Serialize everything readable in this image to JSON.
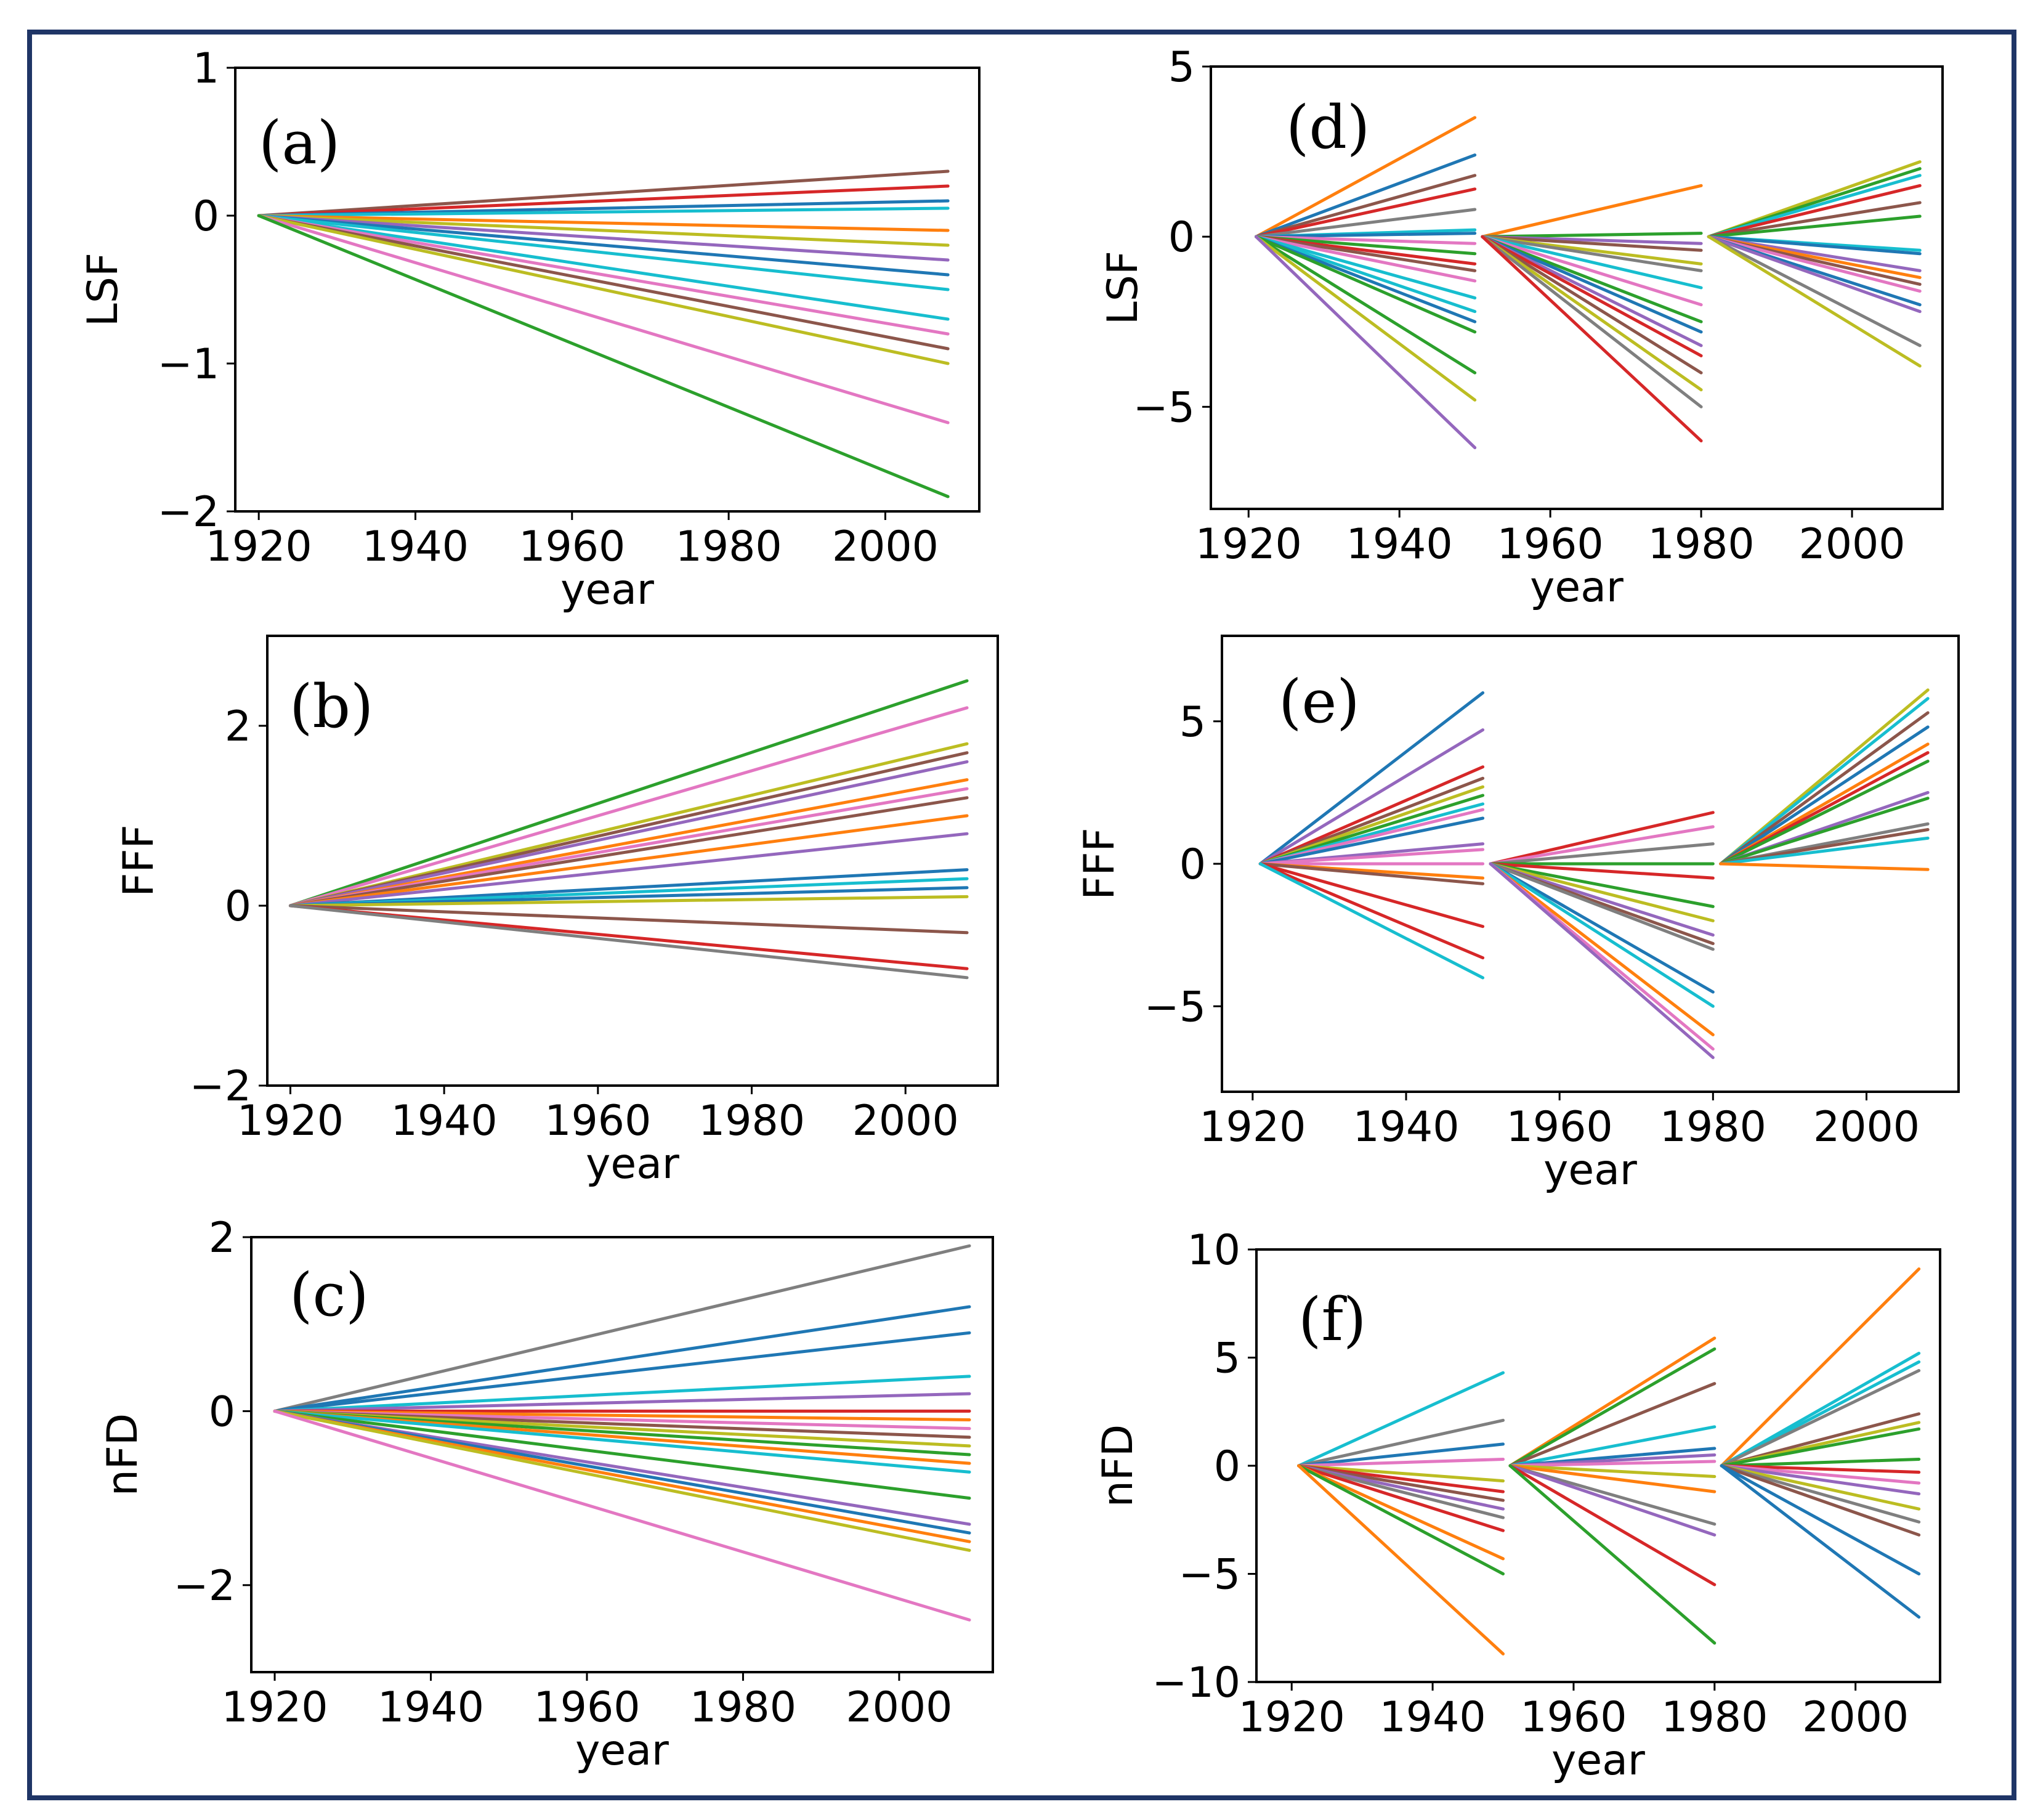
{
  "colors": [
    "#1f77b4",
    "#ff7f0e",
    "#2ca02c",
    "#d62728",
    "#9467bd",
    "#8c564b",
    "#e377c2",
    "#7f7f7f",
    "#bcbd22",
    "#17becf"
  ],
  "chart_data": [
    {
      "id": "a",
      "panel_label": "(a)",
      "type": "line",
      "xlabel": "year",
      "ylabel": "LSF",
      "xlim": [
        1917,
        2012
      ],
      "ylim": [
        -2,
        1
      ],
      "xticks": [
        1920,
        1940,
        1960,
        1980,
        2000
      ],
      "yticks": [
        1,
        0,
        -1,
        -2
      ],
      "ytick_labels": [
        "1",
        "0",
        "−1",
        "−2"
      ],
      "segments": [
        {
          "x": [
            1920,
            2008
          ],
          "ends": [
            0.3,
            0.2,
            0.1,
            0.05,
            -0.1,
            -0.2,
            -0.3,
            -0.4,
            -0.5,
            -0.7,
            -0.8,
            -0.9,
            -1.0,
            -1.4,
            -1.9
          ],
          "colors": [
            5,
            3,
            0,
            9,
            1,
            8,
            4,
            0,
            9,
            9,
            6,
            5,
            8,
            6,
            2
          ]
        }
      ]
    },
    {
      "id": "b",
      "panel_label": "(b)",
      "type": "line",
      "xlabel": "year",
      "ylabel": "FFF",
      "xlim": [
        1917,
        2012
      ],
      "ylim": [
        -2,
        3
      ],
      "xticks": [
        1920,
        1940,
        1960,
        1980,
        2000
      ],
      "yticks": [
        2,
        0,
        -2
      ],
      "ytick_labels": [
        "2",
        "0",
        "−2"
      ],
      "segments": [
        {
          "x": [
            1920,
            2008
          ],
          "ends": [
            2.5,
            2.2,
            1.8,
            1.7,
            1.6,
            1.4,
            1.3,
            1.2,
            1.0,
            0.8,
            0.4,
            0.3,
            0.2,
            0.1,
            -0.3,
            -0.7,
            -0.8
          ],
          "colors": [
            2,
            6,
            8,
            5,
            4,
            1,
            6,
            5,
            1,
            4,
            0,
            9,
            0,
            8,
            5,
            3,
            7
          ]
        }
      ]
    },
    {
      "id": "c",
      "panel_label": "(c)",
      "type": "line",
      "xlabel": "year",
      "ylabel": "nFD",
      "xlim": [
        1917,
        2012
      ],
      "ylim": [
        -3,
        2
      ],
      "xticks": [
        1920,
        1940,
        1960,
        1980,
        2000
      ],
      "yticks": [
        2,
        0,
        -2
      ],
      "ytick_labels": [
        "2",
        "0",
        "−2"
      ],
      "segments": [
        {
          "x": [
            1920,
            2009
          ],
          "ends": [
            1.9,
            1.2,
            0.9,
            0.4,
            0.2,
            0.0,
            -0.1,
            -0.2,
            -0.3,
            -0.4,
            -0.5,
            -0.6,
            -0.7,
            -1.0,
            -1.3,
            -1.4,
            -1.5,
            -1.6,
            -2.4
          ],
          "colors": [
            7,
            0,
            0,
            9,
            4,
            3,
            1,
            6,
            5,
            8,
            2,
            1,
            9,
            2,
            4,
            0,
            1,
            8,
            6
          ]
        }
      ]
    },
    {
      "id": "d",
      "panel_label": "(d)",
      "type": "line",
      "xlabel": "year",
      "ylabel": "LSF",
      "xlim": [
        1915,
        2012
      ],
      "ylim": [
        -8,
        5
      ],
      "xticks": [
        1920,
        1940,
        1960,
        1980,
        2000
      ],
      "yticks": [
        5,
        0,
        -5
      ],
      "ytick_labels": [
        "5",
        "0",
        "−5"
      ],
      "segments": [
        {
          "x": [
            1921,
            1950
          ],
          "ends": [
            3.5,
            2.4,
            1.8,
            1.4,
            0.8,
            0.2,
            0.1,
            -0.2,
            -0.5,
            -0.8,
            -1.0,
            -1.3,
            -1.8,
            -2.2,
            -2.5,
            -2.8,
            -4.0,
            -4.8,
            -6.2
          ],
          "colors": [
            1,
            0,
            5,
            3,
            7,
            9,
            0,
            6,
            2,
            3,
            5,
            6,
            9,
            9,
            0,
            2,
            2,
            8,
            4
          ]
        },
        {
          "x": [
            1951,
            1980
          ],
          "ends": [
            1.5,
            0.1,
            -0.2,
            -0.4,
            -0.8,
            -1.0,
            -1.5,
            -2.0,
            -2.5,
            -2.8,
            -3.2,
            -3.5,
            -4.0,
            -4.5,
            -5.0,
            -6.0
          ],
          "colors": [
            1,
            2,
            4,
            5,
            8,
            7,
            9,
            6,
            2,
            0,
            4,
            3,
            5,
            8,
            7,
            3
          ]
        },
        {
          "x": [
            1981,
            2009
          ],
          "ends": [
            2.2,
            2.0,
            1.8,
            1.5,
            1.0,
            0.6,
            -0.4,
            -0.5,
            -1.0,
            -1.2,
            -1.4,
            -1.6,
            -2.0,
            -2.2,
            -3.2,
            -3.8
          ],
          "colors": [
            8,
            2,
            9,
            3,
            5,
            2,
            9,
            0,
            4,
            1,
            5,
            6,
            0,
            4,
            7,
            8
          ]
        }
      ]
    },
    {
      "id": "e",
      "panel_label": "(e)",
      "type": "line",
      "xlabel": "year",
      "ylabel": "FFF",
      "xlim": [
        1916,
        2012
      ],
      "ylim": [
        -8,
        8
      ],
      "xticks": [
        1920,
        1940,
        1960,
        1980,
        2000
      ],
      "yticks": [
        5,
        0,
        -5
      ],
      "ytick_labels": [
        "5",
        "0",
        "−5"
      ],
      "segments": [
        {
          "x": [
            1921,
            1950
          ],
          "ends": [
            6.0,
            4.7,
            3.4,
            3.0,
            2.7,
            2.4,
            2.1,
            1.9,
            1.6,
            0.7,
            0.5,
            0.0,
            -0.5,
            -0.7,
            -2.2,
            -3.3,
            -4.0
          ],
          "colors": [
            0,
            4,
            3,
            5,
            8,
            2,
            9,
            6,
            0,
            4,
            6,
            6,
            1,
            5,
            3,
            3,
            9
          ]
        },
        {
          "x": [
            1951,
            1980
          ],
          "ends": [
            1.8,
            1.3,
            0.7,
            0.0,
            -0.5,
            -1.5,
            -2.0,
            -2.5,
            -2.8,
            -3.0,
            -4.5,
            -5.0,
            -6.0,
            -6.5,
            -6.8
          ],
          "colors": [
            3,
            6,
            7,
            2,
            3,
            2,
            8,
            4,
            5,
            7,
            0,
            9,
            1,
            6,
            4
          ]
        },
        {
          "x": [
            1981,
            2008
          ],
          "ends": [
            6.1,
            5.8,
            5.3,
            4.8,
            4.2,
            3.9,
            3.6,
            2.5,
            2.3,
            1.4,
            1.2,
            0.9,
            -0.2
          ],
          "colors": [
            8,
            9,
            5,
            0,
            1,
            3,
            2,
            4,
            2,
            7,
            5,
            9,
            1
          ]
        }
      ]
    },
    {
      "id": "f",
      "panel_label": "(f)",
      "type": "line",
      "xlabel": "year",
      "ylabel": "nFD",
      "xlim": [
        1915,
        2012
      ],
      "ylim": [
        -10,
        10
      ],
      "xticks": [
        1920,
        1940,
        1960,
        1980,
        2000
      ],
      "yticks": [
        10,
        5,
        0,
        -5,
        -10
      ],
      "ytick_labels": [
        "10",
        "5",
        "0",
        "−5",
        "−10"
      ],
      "segments": [
        {
          "x": [
            1921,
            1950
          ],
          "ends": [
            4.3,
            2.1,
            1.0,
            0.3,
            -0.7,
            -1.2,
            -1.6,
            -2.0,
            -2.4,
            -3.0,
            -4.3,
            -5.0,
            -8.7
          ],
          "colors": [
            9,
            7,
            0,
            6,
            8,
            3,
            5,
            4,
            7,
            3,
            1,
            2,
            1
          ]
        },
        {
          "x": [
            1951,
            1980
          ],
          "ends": [
            5.9,
            5.4,
            3.8,
            1.8,
            0.8,
            0.5,
            0.2,
            -0.5,
            -1.2,
            -2.7,
            -3.2,
            -5.5,
            -8.2
          ],
          "colors": [
            1,
            2,
            5,
            9,
            0,
            4,
            6,
            8,
            1,
            7,
            4,
            3,
            2
          ]
        },
        {
          "x": [
            1981,
            2009
          ],
          "ends": [
            9.1,
            5.2,
            4.8,
            4.4,
            2.4,
            2.0,
            1.7,
            0.3,
            -0.3,
            -0.8,
            -1.3,
            -2.0,
            -2.6,
            -3.2,
            -5.0,
            -7.0
          ],
          "colors": [
            1,
            9,
            9,
            7,
            5,
            8,
            2,
            2,
            3,
            6,
            4,
            8,
            7,
            5,
            0,
            0
          ]
        }
      ]
    }
  ]
}
